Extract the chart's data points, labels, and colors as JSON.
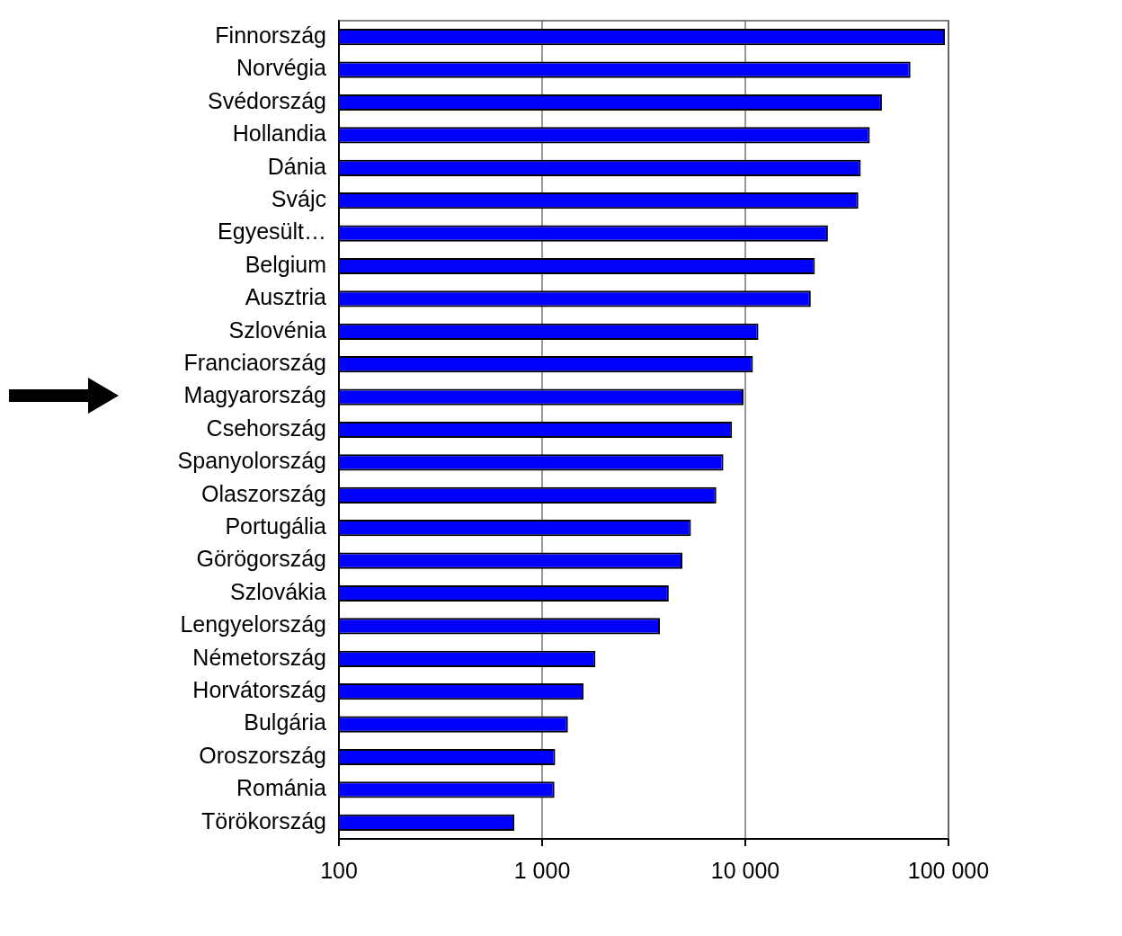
{
  "chart_data": {
    "type": "bar",
    "orientation": "horizontal",
    "log": "x",
    "categories": [
      "Finnország",
      "Norvégia",
      "Svédország",
      "Hollandia",
      "Dánia",
      "Svájc",
      "Egyesült…",
      "Belgium",
      "Ausztria",
      "Szlovénia",
      "Franciaország",
      "Magyarország",
      "Csehország",
      "Spanyolország",
      "Olaszország",
      "Portugália",
      "Görögország",
      "Szlovákia",
      "Lengyelország",
      "Németország",
      "Horvátország",
      "Bulgária",
      "Oroszország",
      "Románia",
      "Törökország"
    ],
    "values": [
      96000,
      65000,
      47000,
      41000,
      37000,
      36000,
      25500,
      22000,
      21000,
      11600,
      10900,
      9800,
      8600,
      7800,
      7200,
      5400,
      4900,
      4200,
      3800,
      1830,
      1600,
      1340,
      1160,
      1150,
      730
    ],
    "color": "#0000ff",
    "xlim": [
      100,
      100000
    ],
    "xticks": [
      100,
      {
        "value": 1000,
        "label": "1 000"
      },
      {
        "value": 10000,
        "label": "10 000"
      },
      {
        "value": 100000,
        "label": "100 000"
      }
    ],
    "grid": "x",
    "legend": false
  }
}
